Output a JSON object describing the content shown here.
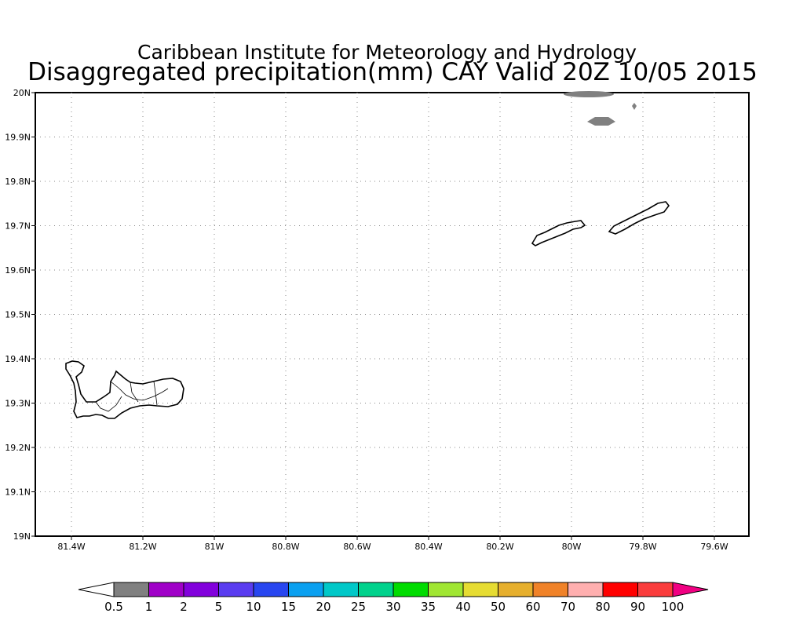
{
  "title": {
    "line1": "Caribbean Institute for Meteorology and Hydrology",
    "line2": "Disaggregated precipitation(mm) CAY Valid 20Z 10/05 2015"
  },
  "map": {
    "lon_ticks": [
      "81.4W",
      "81.2W",
      "81W",
      "80.8W",
      "80.6W",
      "80.4W",
      "80.2W",
      "80W",
      "79.8W",
      "79.6W"
    ],
    "lat_ticks": [
      "20N",
      "19.9N",
      "19.8N",
      "19.7N",
      "19.6N",
      "19.5N",
      "19.4N",
      "19.3N",
      "19.2N",
      "19.1N",
      "19N"
    ],
    "grid": "dotted"
  },
  "colorbar": {
    "labels": [
      "0.5",
      "1",
      "2",
      "5",
      "10",
      "15",
      "20",
      "25",
      "30",
      "35",
      "40",
      "50",
      "60",
      "70",
      "80",
      "90",
      "100"
    ],
    "colors": [
      "#ffffff",
      "#808080",
      "#a000c8",
      "#8200dc",
      "#5a3cf0",
      "#2846f0",
      "#0aa0f0",
      "#00c8c8",
      "#00d28c",
      "#00dc00",
      "#a0e632",
      "#e6dc32",
      "#e6af2d",
      "#f08228",
      "#ffafaf",
      "#ff0000",
      "#fa3c3c",
      "#f00082"
    ]
  }
}
